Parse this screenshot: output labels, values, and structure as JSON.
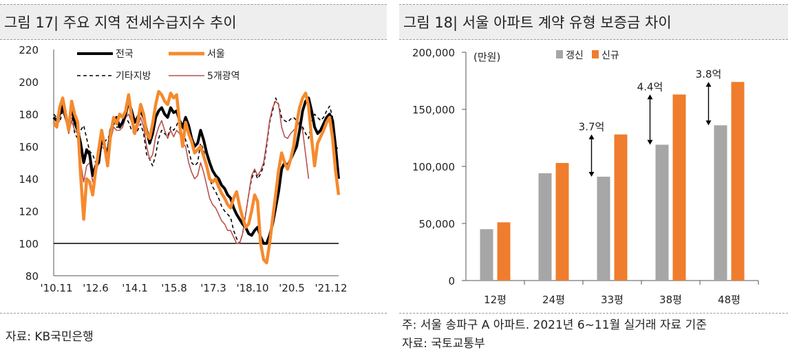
{
  "left_panel": {
    "title": "그림 17| 주요 지역 전세수급지수 추이",
    "source": "자료: KB국민은행"
  },
  "right_panel": {
    "title": "그림 18| 서울 아파트 계약 유형 보증금 차이",
    "note": "주: 서울 송파구 A 아파트. 2021년 6~11월 실거래 자료 기준",
    "source": "자료: 국토교통부"
  },
  "chart_data": [
    {
      "type": "line",
      "ylim": [
        80,
        220
      ],
      "yticks": [
        80,
        100,
        120,
        140,
        160,
        180,
        200,
        220
      ],
      "xticks": [
        "'10.11",
        "'12.6",
        "'14.1",
        "'15.8",
        "'17.3",
        "'18.10",
        "'20.5",
        "'21.12"
      ],
      "reference_line": 100,
      "legend_placement": "top, 2x2",
      "series": [
        {
          "name": "전국",
          "color": "#000000",
          "style": "solid-thick",
          "values": [
            178,
            176,
            180,
            185,
            178,
            172,
            185,
            175,
            170,
            162,
            150,
            158,
            155,
            142,
            148,
            150,
            165,
            160,
            155,
            170,
            175,
            178,
            172,
            175,
            180,
            188,
            182,
            175,
            178,
            182,
            178,
            170,
            162,
            168,
            178,
            182,
            184,
            180,
            178,
            184,
            181,
            182,
            176,
            172,
            178,
            173,
            165,
            160,
            162,
            170,
            164,
            156,
            150,
            145,
            142,
            140,
            136,
            134,
            130,
            128,
            122,
            118,
            115,
            112,
            110,
            106,
            105,
            108,
            110,
            104,
            100,
            100,
            105,
            112,
            122,
            132,
            146,
            150,
            148,
            152,
            156,
            160,
            170,
            182,
            188,
            190,
            182,
            172,
            168,
            170,
            174,
            178,
            180,
            176,
            160,
            140
          ]
        },
        {
          "name": "서울",
          "color": "#f58a2e",
          "style": "solid-thick",
          "values": [
            175,
            172,
            184,
            190,
            180,
            170,
            188,
            180,
            175,
            142,
            115,
            140,
            138,
            130,
            145,
            158,
            170,
            160,
            148,
            168,
            178,
            174,
            180,
            178,
            182,
            192,
            178,
            168,
            175,
            186,
            180,
            168,
            165,
            174,
            186,
            194,
            192,
            188,
            186,
            193,
            190,
            192,
            174,
            160,
            175,
            168,
            163,
            156,
            158,
            160,
            154,
            148,
            140,
            138,
            140,
            135,
            131,
            128,
            124,
            122,
            128,
            132,
            123,
            116,
            110,
            112,
            120,
            130,
            126,
            100,
            90,
            88,
            100,
            115,
            130,
            145,
            156,
            150,
            146,
            152,
            160,
            174,
            184,
            190,
            193,
            185,
            165,
            148,
            162,
            166,
            170,
            175,
            178,
            165,
            145,
            130
          ]
        },
        {
          "name": "기타지방",
          "color": "#000000",
          "style": "dashed",
          "values": [
            180,
            178,
            175,
            182,
            177,
            172,
            180,
            168,
            165,
            170,
            173,
            165,
            157,
            155,
            150,
            158,
            162,
            163,
            165,
            168,
            174,
            172,
            172,
            174,
            178,
            175,
            170,
            168,
            170,
            174,
            168,
            155,
            152,
            148,
            155,
            165,
            170,
            168,
            166,
            172,
            170,
            173,
            178,
            172,
            164,
            158,
            150,
            148,
            150,
            162,
            158,
            148,
            140,
            135,
            132,
            128,
            123,
            120,
            118,
            116,
            108,
            103,
            100,
            106,
            118,
            130,
            140,
            145,
            140,
            143,
            148,
            160,
            175,
            182,
            190,
            186,
            178,
            176,
            175,
            177,
            178,
            176,
            174,
            172,
            168,
            165,
            175,
            180,
            178,
            176,
            178,
            182,
            185,
            178,
            160,
            158
          ]
        },
        {
          "name": "5개광역",
          "color": "#b8524f",
          "style": "solid-thin",
          "values": [
            176,
            172,
            178,
            186,
            180,
            168,
            176,
            170,
            168,
            150,
            138,
            148,
            150,
            138,
            144,
            150,
            160,
            158,
            152,
            164,
            172,
            170,
            170,
            172,
            178,
            180,
            175,
            168,
            172,
            178,
            172,
            160,
            152,
            155,
            166,
            172,
            176,
            170,
            165,
            170,
            166,
            170,
            168,
            162,
            160,
            150,
            144,
            140,
            142,
            150,
            144,
            136,
            128,
            124,
            122,
            118,
            114,
            112,
            108,
            108,
            104,
            100,
            100,
            106,
            118,
            130,
            142,
            146,
            142,
            145,
            150,
            162,
            176,
            184,
            188,
            186,
            172,
            166,
            165,
            168,
            170,
            172,
            175,
            170,
            155,
            140
          ]
        }
      ]
    },
    {
      "type": "bar",
      "unit": "(만원)",
      "ylim": [
        0,
        200000
      ],
      "yticks": [
        "0",
        "50,000",
        "100,000",
        "150,000",
        "200,000"
      ],
      "categories": [
        "12평",
        "24평",
        "33평",
        "38평",
        "48평"
      ],
      "series": [
        {
          "name": "갱신",
          "color": "#a6a6a6",
          "values": [
            45000,
            94000,
            91000,
            119000,
            136000
          ]
        },
        {
          "name": "신규",
          "color": "#ef7d2d",
          "values": [
            51000,
            103000,
            128000,
            163000,
            174000
          ]
        }
      ],
      "annotations": [
        {
          "category": "33평",
          "label": "3.7억"
        },
        {
          "category": "38평",
          "label": "4.4억"
        },
        {
          "category": "48평",
          "label": "3.8억"
        }
      ]
    }
  ]
}
